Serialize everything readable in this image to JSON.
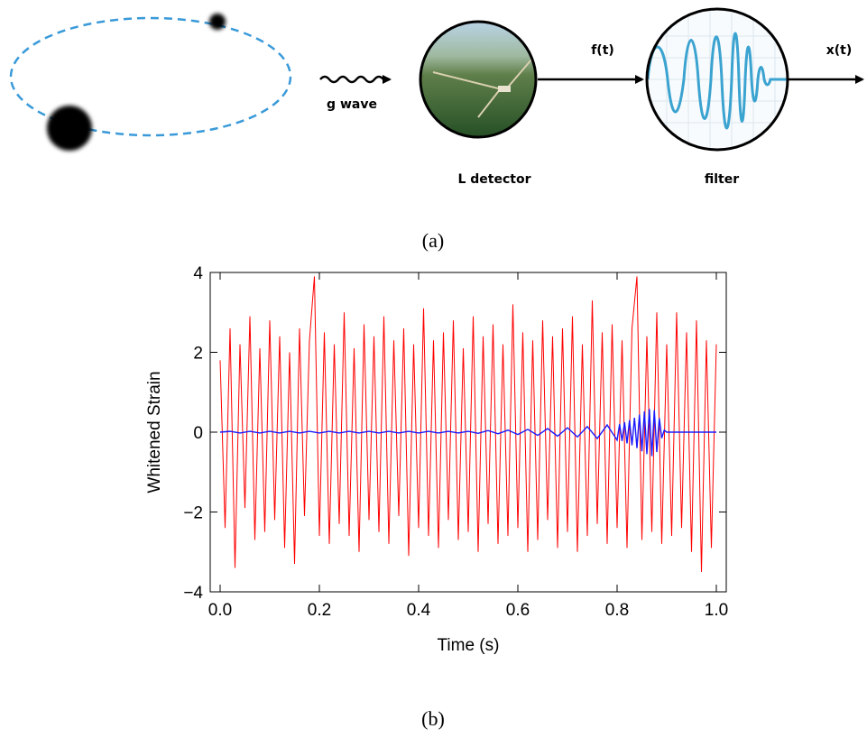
{
  "diagram": {
    "wave_label": "g wave",
    "detector_label": "L detector",
    "detector_output": "f(t)",
    "filter_label": "filter",
    "filter_output": "x(t)"
  },
  "captions": [
    "(a)",
    "(b)"
  ],
  "chart_data": {
    "type": "line",
    "x_label": "Time (s)",
    "y_label": "Whitened Strain",
    "xlim": [
      -0.02,
      1.02
    ],
    "ylim": [
      -4,
      4
    ],
    "xticks": [
      {
        "value": 0,
        "label": "0.0"
      },
      0.2,
      0.4,
      0.6,
      0.8,
      {
        "value": 1,
        "label": "1.0"
      }
    ],
    "yticks": [
      {
        "value": -4,
        "label": "−4"
      },
      {
        "value": -2,
        "label": "−2"
      },
      0,
      2,
      4
    ],
    "series": [
      {
        "color": "#ff0000",
        "x": [
          0,
          0.01,
          0.02,
          0.03,
          0.04,
          0.05,
          0.06,
          0.07,
          0.08,
          0.09,
          0.1,
          0.11,
          0.12,
          0.13,
          0.14,
          0.15,
          0.16,
          0.17,
          0.18,
          0.19,
          0.2,
          0.21,
          0.22,
          0.23,
          0.24,
          0.25,
          0.26,
          0.27,
          0.28,
          0.29,
          0.3,
          0.31,
          0.32,
          0.33,
          0.34,
          0.35,
          0.36,
          0.37,
          0.38,
          0.39,
          0.4,
          0.41,
          0.42,
          0.43,
          0.44,
          0.45,
          0.46,
          0.47,
          0.48,
          0.49,
          0.5,
          0.51,
          0.52,
          0.53,
          0.54,
          0.55,
          0.56,
          0.57,
          0.58,
          0.59,
          0.6,
          0.61,
          0.62,
          0.63,
          0.64,
          0.65,
          0.66,
          0.67,
          0.68,
          0.69,
          0.7,
          0.71,
          0.72,
          0.73,
          0.74,
          0.75,
          0.76,
          0.77,
          0.78,
          0.79,
          0.8,
          0.81,
          0.82,
          0.83,
          0.84,
          0.85,
          0.86,
          0.87,
          0.88,
          0.89,
          0.9,
          0.91,
          0.92,
          0.93,
          0.94,
          0.95,
          0.96,
          0.97,
          0.98,
          0.99,
          1
        ],
        "values": [
          1.8,
          -2.4,
          2.6,
          -3.4,
          2.2,
          -1.9,
          2.9,
          -2.7,
          2.1,
          -2.5,
          2.8,
          -2.2,
          2.4,
          -2.9,
          2.0,
          -3.3,
          2.6,
          -2.1,
          2.3,
          3.9,
          -2.6,
          2.5,
          -2.8,
          2.2,
          -2.3,
          3.0,
          -2.6,
          2.1,
          -3.0,
          2.7,
          -2.2,
          2.4,
          -2.5,
          2.9,
          -2.8,
          2.3,
          -2.1,
          2.6,
          -3.1,
          2.2,
          -2.4,
          3.1,
          -2.6,
          2.3,
          -2.9,
          2.5,
          -2.2,
          2.8,
          -2.7,
          2.1,
          -2.5,
          2.9,
          -3.0,
          2.4,
          -2.3,
          2.7,
          -2.8,
          2.2,
          -2.6,
          3.2,
          -2.4,
          2.5,
          -3.0,
          2.3,
          -2.7,
          2.8,
          -2.2,
          2.4,
          -2.9,
          2.6,
          -2.5,
          2.9,
          -3.0,
          2.2,
          -2.6,
          3.3,
          -2.3,
          2.5,
          -2.8,
          2.7,
          -2.4,
          2.3,
          -2.9,
          2.6,
          3.9,
          -2.7,
          2.4,
          -2.5,
          3.0,
          -2.8,
          2.2,
          -2.6,
          3.0,
          -2.4,
          2.5,
          -3.0,
          2.8,
          -3.5,
          2.3,
          -2.9,
          2.2
        ]
      },
      {
        "color": "#1a1aff",
        "x": [
          0,
          0.02,
          0.04,
          0.06,
          0.08,
          0.1,
          0.12,
          0.14,
          0.16,
          0.18,
          0.2,
          0.22,
          0.24,
          0.26,
          0.28,
          0.3,
          0.32,
          0.34,
          0.36,
          0.38,
          0.4,
          0.42,
          0.44,
          0.46,
          0.48,
          0.5,
          0.52,
          0.54,
          0.56,
          0.58,
          0.6,
          0.62,
          0.64,
          0.66,
          0.68,
          0.7,
          0.72,
          0.74,
          0.76,
          0.78,
          0.8,
          0.805,
          0.81,
          0.815,
          0.82,
          0.825,
          0.83,
          0.835,
          0.84,
          0.845,
          0.85,
          0.855,
          0.86,
          0.865,
          0.87,
          0.875,
          0.88,
          0.885,
          0.89,
          0.895,
          0.9,
          0.91,
          0.95,
          1
        ],
        "values": [
          0,
          0.02,
          -0.02,
          0.02,
          -0.02,
          0.02,
          -0.02,
          0.02,
          -0.02,
          0.02,
          -0.02,
          0.02,
          -0.02,
          0.02,
          -0.02,
          0.02,
          -0.02,
          0.02,
          -0.02,
          0.02,
          -0.02,
          0.02,
          -0.02,
          0.02,
          -0.02,
          0.02,
          -0.03,
          0.04,
          -0.04,
          0.05,
          -0.06,
          0.07,
          -0.08,
          0.09,
          -0.1,
          0.11,
          -0.12,
          0.14,
          -0.16,
          0.18,
          -0.2,
          0.2,
          -0.22,
          0.25,
          -0.28,
          0.3,
          -0.33,
          0.36,
          -0.4,
          0.44,
          -0.48,
          0.52,
          -0.55,
          0.58,
          -0.6,
          0.55,
          -0.5,
          0.35,
          -0.15,
          0.05,
          0,
          0,
          0,
          0
        ]
      }
    ]
  }
}
